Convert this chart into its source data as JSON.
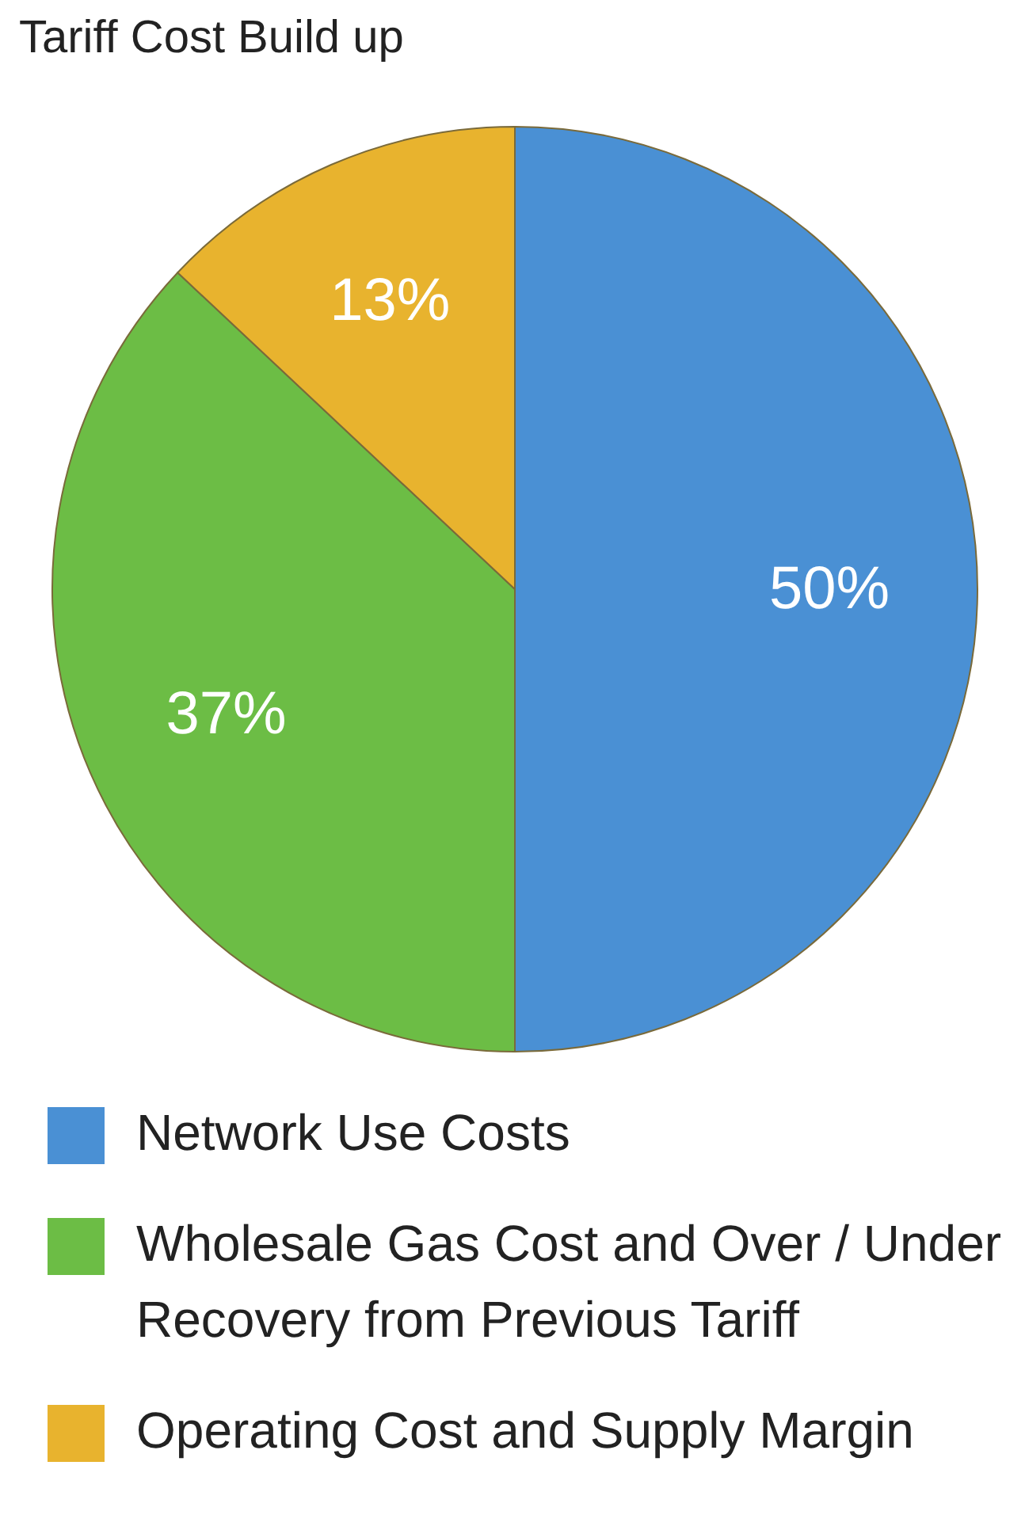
{
  "chart_data": {
    "type": "pie",
    "title": "Tariff Cost Build up",
    "categories": [
      "Network Use Costs",
      "Wholesale Gas Cost and Over / Under Recovery from Previous Tariff",
      "Operating Cost and Supply Margin"
    ],
    "values": [
      50,
      37,
      13
    ],
    "colors": [
      "#4a90d4",
      "#6cbd45",
      "#e8b32e"
    ],
    "value_labels": [
      "50%",
      "37%",
      "13%"
    ],
    "legend": "bottom"
  }
}
